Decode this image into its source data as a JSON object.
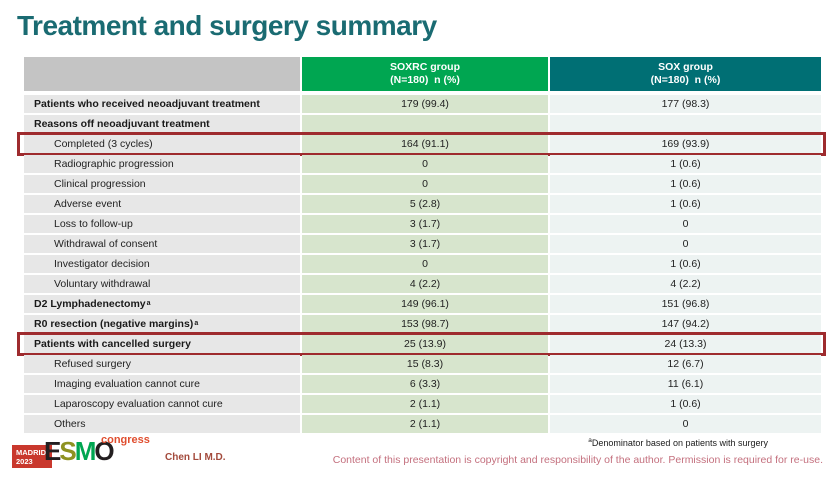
{
  "slide": {
    "title": "Treatment and surgery summary"
  },
  "colors": {
    "title_text": "#1a6b72",
    "header_green": "#00a651",
    "header_teal": "#006f74",
    "header_blank_gray": "#c4c4c4",
    "label_cell_bg": "#e7e7e7",
    "green_cell_bg": "#d7e5cd",
    "teal_cell_bg": "#edf3f2",
    "highlight_border": "#9e2b2e",
    "copyright_text": "#c4707e",
    "author_text": "#a34a3c",
    "congress_text": "#e04e2f",
    "madrid_box": "#c9382d"
  },
  "table": {
    "columns": [
      {
        "line1": "",
        "line2": ""
      },
      {
        "line1": "SOXRC group",
        "line2": "(N=180)  n (%)"
      },
      {
        "line1": "SOX group",
        "line2": "(N=180)  n (%)"
      }
    ],
    "rows": [
      {
        "label": "Patients who received neoadjuvant treatment",
        "bold": true,
        "indent": false,
        "soxrc": "179 (99.4)",
        "sox": "177 (98.3)",
        "highlight": false
      },
      {
        "label": "Reasons off neoadjuvant treatment",
        "bold": true,
        "indent": false,
        "soxrc": "",
        "sox": "",
        "highlight": false
      },
      {
        "label": "Completed (3 cycles)",
        "bold": false,
        "indent": true,
        "soxrc": "164 (91.1)",
        "sox": "169 (93.9)",
        "highlight": true
      },
      {
        "label": "Radiographic progression",
        "bold": false,
        "indent": true,
        "soxrc": "0",
        "sox": "1 (0.6)",
        "highlight": false
      },
      {
        "label": "Clinical progression",
        "bold": false,
        "indent": true,
        "soxrc": "0",
        "sox": "1 (0.6)",
        "highlight": false
      },
      {
        "label": "Adverse event",
        "bold": false,
        "indent": true,
        "soxrc": "5 (2.8)",
        "sox": "1 (0.6)",
        "highlight": false
      },
      {
        "label": "Loss to follow-up",
        "bold": false,
        "indent": true,
        "soxrc": "3 (1.7)",
        "sox": "0",
        "highlight": false
      },
      {
        "label": "Withdrawal of consent",
        "bold": false,
        "indent": true,
        "soxrc": "3 (1.7)",
        "sox": "0",
        "highlight": false
      },
      {
        "label": "Investigator decision",
        "bold": false,
        "indent": true,
        "soxrc": "0",
        "sox": "1 (0.6)",
        "highlight": false
      },
      {
        "label": "Voluntary withdrawal",
        "bold": false,
        "indent": true,
        "soxrc": "4 (2.2)",
        "sox": "4 (2.2)",
        "highlight": false
      },
      {
        "label": "D2 Lymphadenectomy",
        "sup": "a",
        "bold": true,
        "indent": false,
        "soxrc": "149 (96.1)",
        "sox": "151 (96.8)",
        "highlight": false
      },
      {
        "label": "R0 resection (negative margins)",
        "sup": "a",
        "bold": true,
        "indent": false,
        "soxrc": "153 (98.7)",
        "sox": "147 (94.2)",
        "highlight": false
      },
      {
        "label": "Patients with cancelled surgery",
        "bold": true,
        "indent": false,
        "soxrc": "25 (13.9)",
        "sox": "24 (13.3)",
        "highlight": true
      },
      {
        "label": "Refused surgery",
        "bold": false,
        "indent": true,
        "soxrc": "15 (8.3)",
        "sox": "12 (6.7)",
        "highlight": false
      },
      {
        "label": "Imaging evaluation cannot cure",
        "bold": false,
        "indent": true,
        "soxrc": "6 (3.3)",
        "sox": "11 (6.1)",
        "highlight": false
      },
      {
        "label": "Laparoscopy evaluation cannot cure",
        "bold": false,
        "indent": true,
        "soxrc": "2 (1.1)",
        "sox": "1 (0.6)",
        "highlight": false
      },
      {
        "label": "Others",
        "bold": false,
        "indent": true,
        "soxrc": "2 (1.1)",
        "sox": "0",
        "highlight": false
      }
    ]
  },
  "footer": {
    "logo": {
      "city": "MADRID",
      "year": "2023",
      "letters": [
        {
          "ch": "E",
          "color": "#231f20"
        },
        {
          "ch": "S",
          "color": "#8e9221"
        },
        {
          "ch": "M",
          "color": "#00a651"
        },
        {
          "ch": "O",
          "color": "#231f20"
        }
      ],
      "congress": "congress"
    },
    "author": "Chen LI M.D.",
    "footnote_sup": "a",
    "footnote": "Denominator based on patients with surgery",
    "copyright": "Content of this presentation is copyright and responsibility of the author. Permission is required for re-use."
  }
}
